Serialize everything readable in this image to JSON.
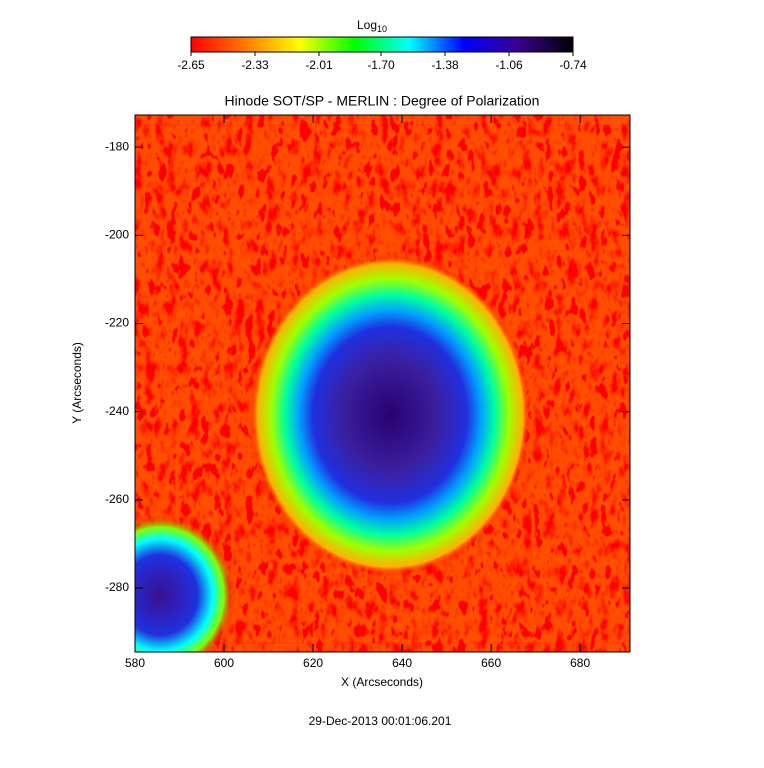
{
  "chart_data": {
    "type": "heatmap",
    "title": "Hinode SOT/SP - MERLIN : Degree of Polarization",
    "x_label": "X (Arcseconds)",
    "y_label": "Y (Arcseconds)",
    "footer": "29-Dec-2013 00:01:06.201",
    "colorbar_label": {
      "base": "Log",
      "subscript": "10"
    },
    "colorbar_lim": [
      -2.65,
      -0.74
    ],
    "colorbar_ticks": [
      -2.65,
      -2.33,
      -2.01,
      {
        "value": -1.7,
        "label": "-1.70"
      },
      -1.38,
      -1.06,
      -0.74
    ],
    "colormap": [
      "#ff0000",
      "#ff7a00",
      "#ffff00",
      "#00ff00",
      "#00ffff",
      "#0000ff",
      "#3a0090",
      "#000000"
    ],
    "xlim": [
      580,
      691.2
    ],
    "xticks": [
      580,
      600,
      620,
      640,
      660,
      680
    ],
    "ylim": [
      -294.5,
      -172.7
    ],
    "yticks": [
      -180,
      -200,
      -220,
      -240,
      -260,
      -280
    ]
  }
}
